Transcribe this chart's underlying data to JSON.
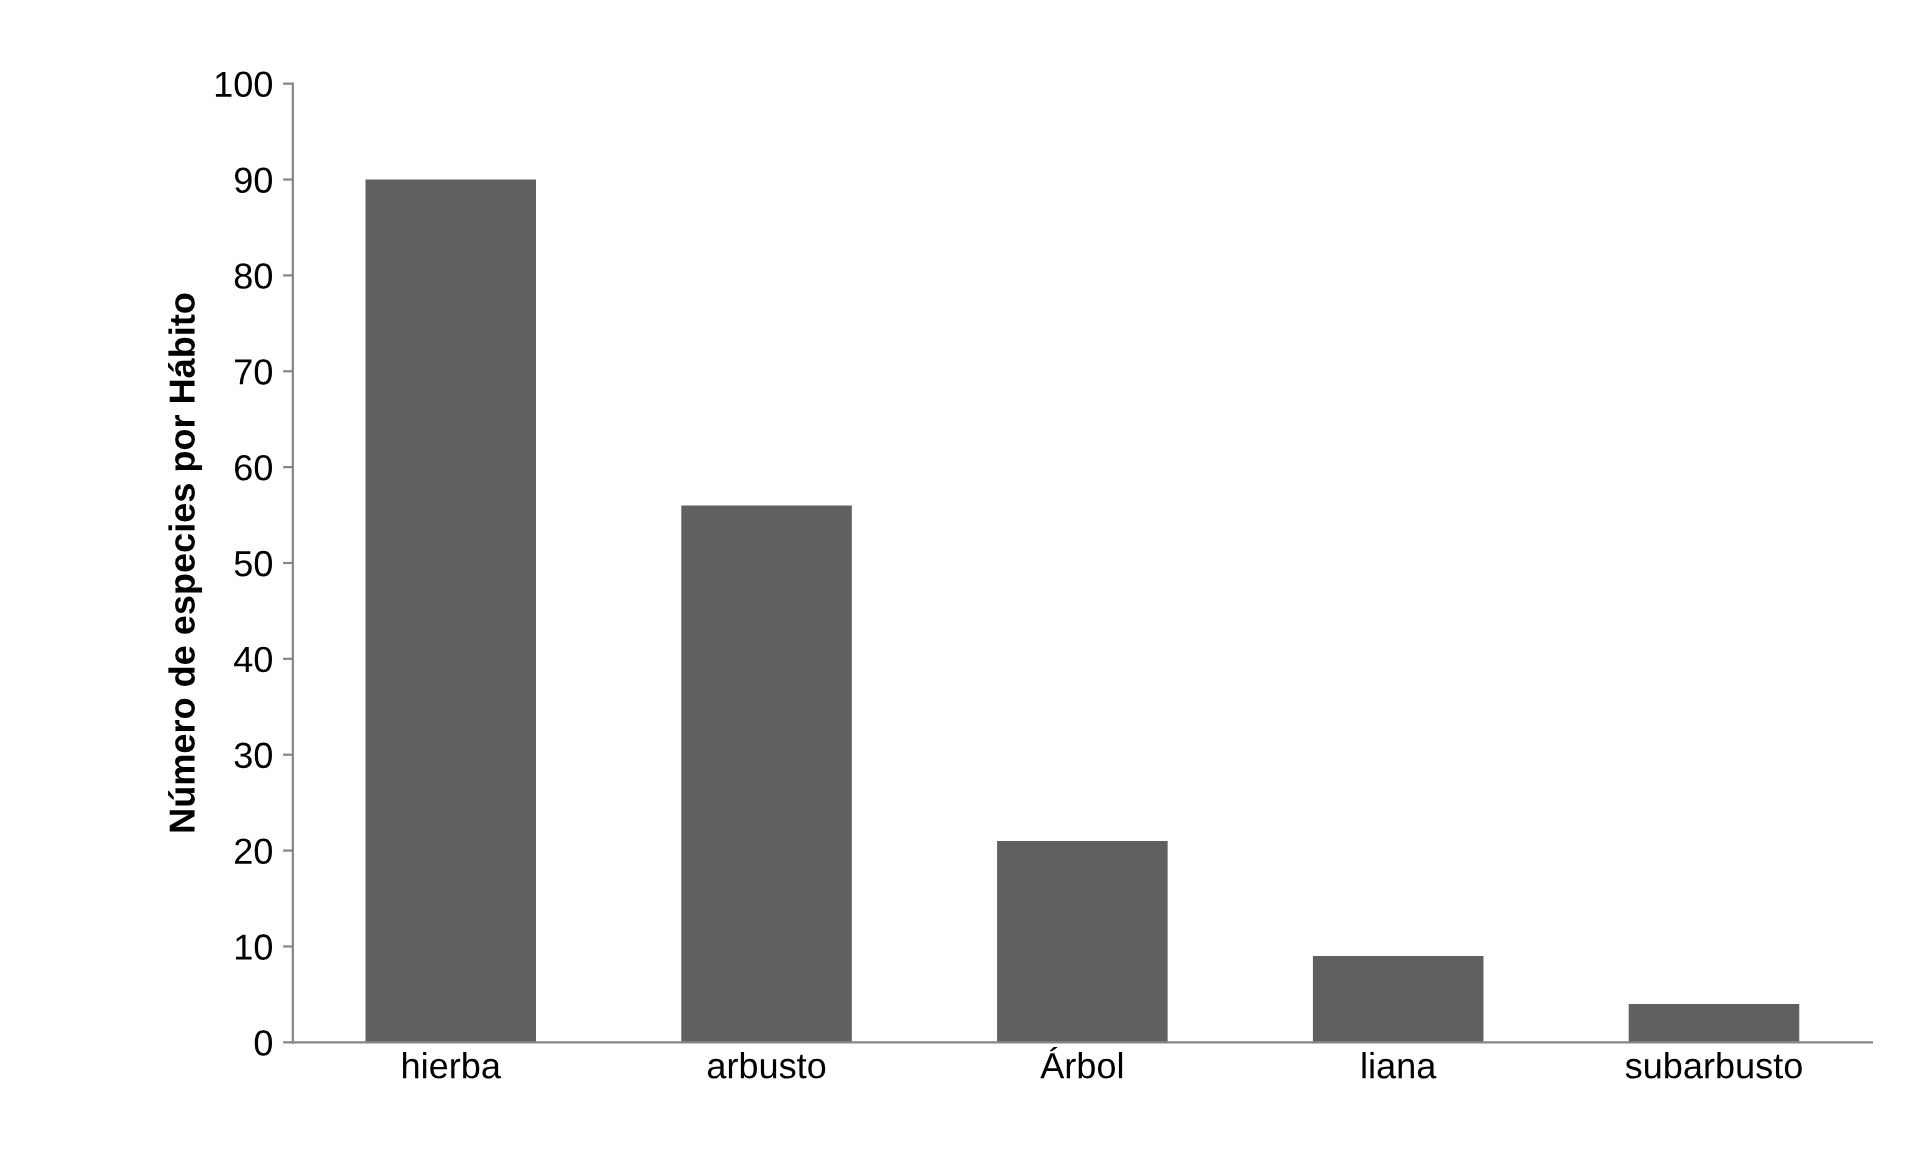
{
  "chart_data": {
    "type": "bar",
    "ylabel": "Número de especies por Hábito",
    "categories": [
      "hierba",
      "arbusto",
      "Árbol",
      "liana",
      "subarbusto"
    ],
    "values": [
      90,
      56,
      21,
      9,
      4
    ],
    "color": "#606060",
    "ylim": [
      0,
      100
    ],
    "yticks": [
      0,
      10,
      20,
      30,
      40,
      50,
      60,
      70,
      80,
      90,
      100
    ],
    "grid": false,
    "legend": false
  }
}
